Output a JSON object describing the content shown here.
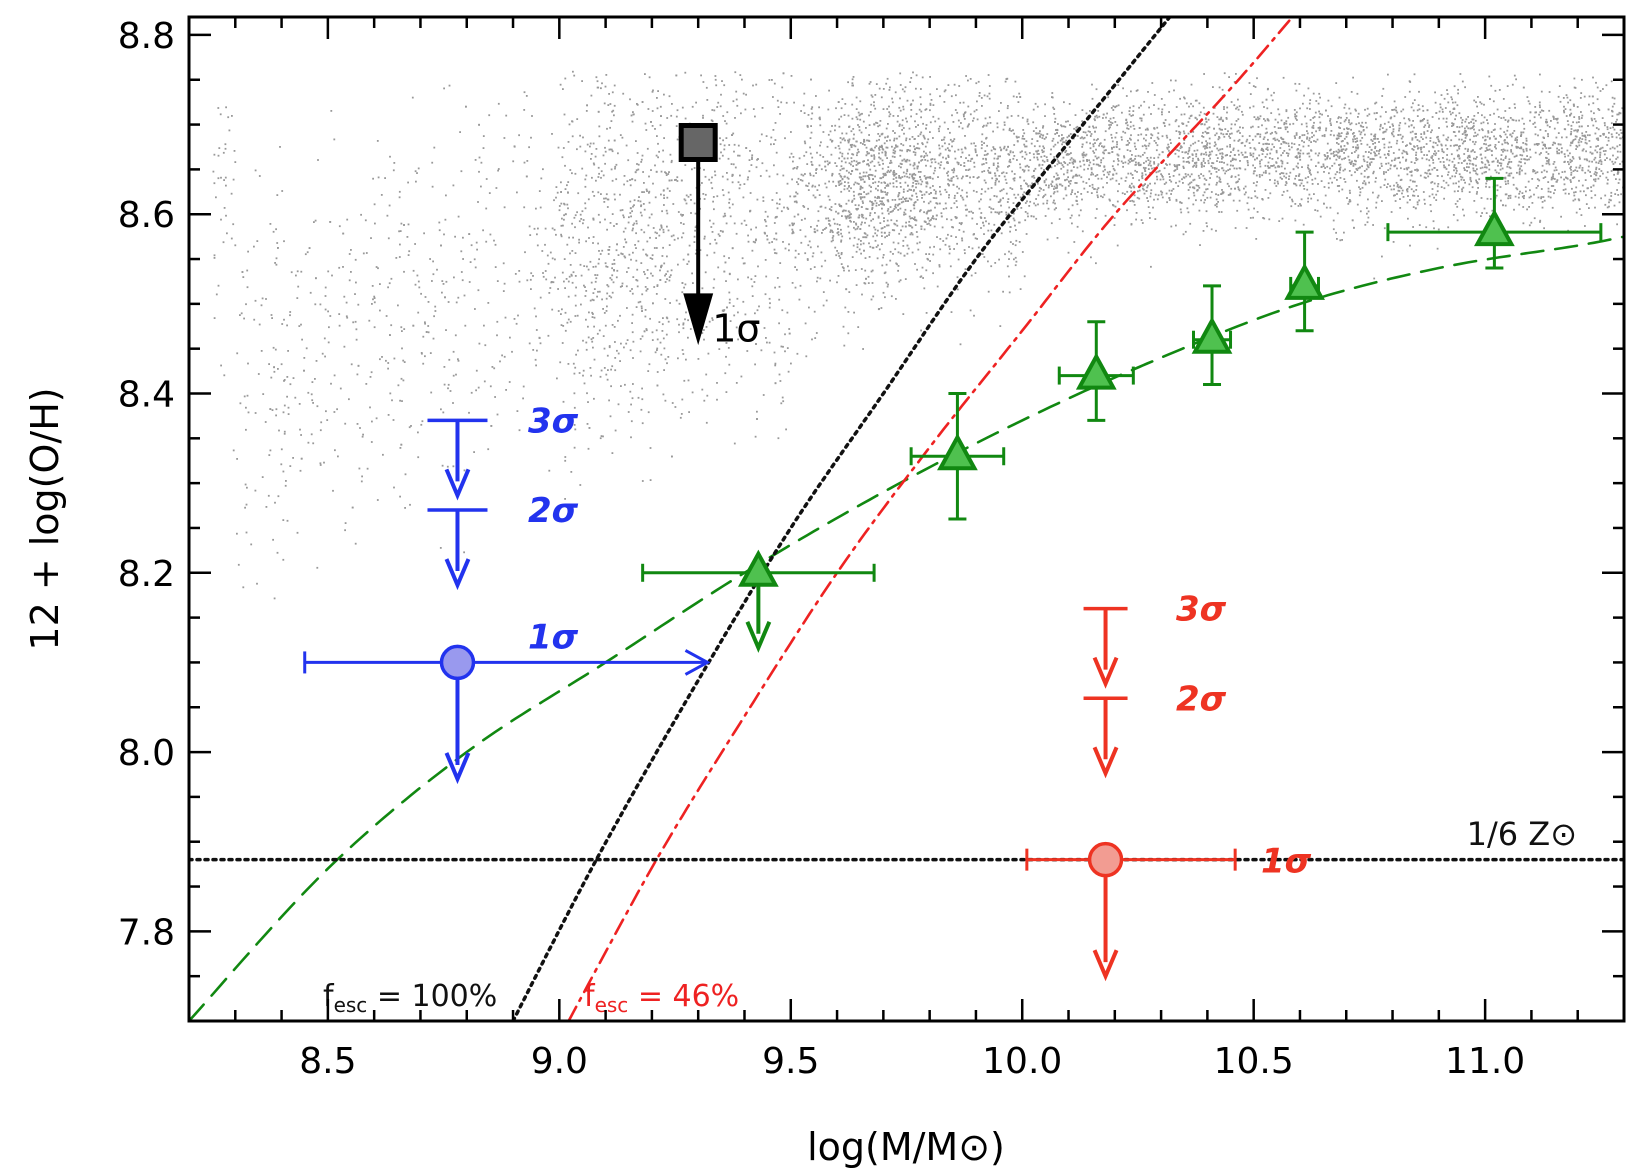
{
  "chart_data": {
    "type": "scatter",
    "xlabel": "log(M/M⊙)",
    "ylabel": "12 + log(O/H)",
    "xlim": [
      8.2,
      11.3
    ],
    "ylim": [
      7.7,
      8.82
    ],
    "xticks": [
      8.5,
      9.0,
      9.5,
      10.0,
      10.5,
      11.0
    ],
    "xtick_labels": [
      "8.5",
      "9.0",
      "9.5",
      "10.0",
      "10.5",
      "11.0"
    ],
    "yticks": [
      7.8,
      8.0,
      8.2,
      8.4,
      8.6,
      8.8
    ],
    "ytick_labels": [
      "7.8",
      "8.0",
      "8.2",
      "8.4",
      "8.6",
      "8.8"
    ],
    "grid": false,
    "background_cloud": {
      "color": "#999999",
      "ridge": [
        [
          8.3,
          8.4
        ],
        [
          8.7,
          8.5
        ],
        [
          9.0,
          8.56
        ],
        [
          9.3,
          8.6
        ],
        [
          9.6,
          8.63
        ],
        [
          10.0,
          8.65
        ],
        [
          10.5,
          8.67
        ],
        [
          11.0,
          8.67
        ],
        [
          11.3,
          8.67
        ]
      ]
    },
    "series": [
      {
        "color": "#118811",
        "marker": "triangle",
        "points": [
          {
            "x": 9.43,
            "y": 8.2,
            "xerr": [
              0.25,
              0.25
            ],
            "yerr": null,
            "upper_limit": true
          },
          {
            "x": 9.86,
            "y": 8.33,
            "xerr": [
              0.1,
              0.1
            ],
            "yerr": [
              0.07,
              0.07
            ]
          },
          {
            "x": 10.16,
            "y": 8.42,
            "xerr": [
              0.08,
              0.08
            ],
            "yerr": [
              0.05,
              0.06
            ]
          },
          {
            "x": 10.41,
            "y": 8.46,
            "xerr": [
              0.04,
              0.04
            ],
            "yerr": [
              0.05,
              0.06
            ]
          },
          {
            "x": 10.61,
            "y": 8.52,
            "xerr": [
              0.03,
              0.03
            ],
            "yerr": [
              0.05,
              0.06
            ]
          },
          {
            "x": 11.02,
            "y": 8.58,
            "xerr": [
              0.23,
              0.23
            ],
            "yerr": [
              0.04,
              0.06
            ]
          }
        ]
      },
      {
        "color": "#2233ee",
        "marker": "circle",
        "points": [
          {
            "x": 8.78,
            "y": 8.1,
            "xerr_low": 0.33,
            "xerr_high_limit": 9.32,
            "upper_limit": true
          }
        ],
        "limits": [
          {
            "y": 8.37,
            "label": "3σ"
          },
          {
            "y": 8.27,
            "label": "2σ"
          },
          {
            "y": 8.1,
            "label": "1σ"
          }
        ]
      },
      {
        "color": "#ee3322",
        "marker": "circle",
        "points": [
          {
            "x": 10.18,
            "y": 7.88,
            "xerr": [
              0.17,
              0.28
            ],
            "upper_limit": true
          }
        ],
        "limits": [
          {
            "y": 8.16,
            "label": "3σ"
          },
          {
            "y": 8.06,
            "label": "2σ"
          },
          {
            "y": 7.88,
            "label": "1σ"
          }
        ]
      },
      {
        "color": "#111111",
        "marker": "square",
        "points": [
          {
            "x": 9.3,
            "y": 8.68,
            "upper_limit": true
          }
        ],
        "limits": [
          {
            "y": 8.68,
            "label": "1σ"
          }
        ]
      }
    ],
    "lines": [
      {
        "style": "dashed",
        "color": "#118811",
        "points": [
          [
            8.2,
            7.7
          ],
          [
            8.5,
            7.87
          ],
          [
            8.8,
            8.0
          ],
          [
            9.1,
            8.1
          ],
          [
            9.4,
            8.2
          ],
          [
            9.7,
            8.29
          ],
          [
            10.0,
            8.37
          ],
          [
            10.3,
            8.44
          ],
          [
            10.6,
            8.5
          ],
          [
            10.9,
            8.54
          ],
          [
            11.2,
            8.565
          ],
          [
            11.3,
            8.575
          ]
        ]
      },
      {
        "style": "dotted",
        "color": "#111111",
        "label_main": "f",
        "label_sub": "esc",
        "label_rest": " = 100%",
        "points": [
          [
            8.9,
            7.7
          ],
          [
            9.08,
            7.88
          ],
          [
            9.3,
            8.08
          ],
          [
            9.5,
            8.25
          ],
          [
            9.7,
            8.4
          ],
          [
            9.9,
            8.55
          ],
          [
            10.1,
            8.68
          ],
          [
            10.35,
            8.84
          ]
        ]
      },
      {
        "style": "dashdot",
        "color": "#ee2222",
        "label_main": "f",
        "label_sub": "esc",
        "label_rest": " = 46%",
        "points": [
          [
            9.02,
            7.7
          ],
          [
            9.21,
            7.88
          ],
          [
            9.4,
            8.04
          ],
          [
            9.6,
            8.2
          ],
          [
            9.8,
            8.34
          ],
          [
            10.0,
            8.47
          ],
          [
            10.2,
            8.6
          ],
          [
            10.45,
            8.74
          ],
          [
            10.6,
            8.83
          ]
        ]
      },
      {
        "style": "dotted",
        "color": "#111111",
        "label": "1/6 Z⊙",
        "points": [
          [
            8.2,
            7.88
          ],
          [
            11.3,
            7.88
          ]
        ]
      }
    ]
  }
}
